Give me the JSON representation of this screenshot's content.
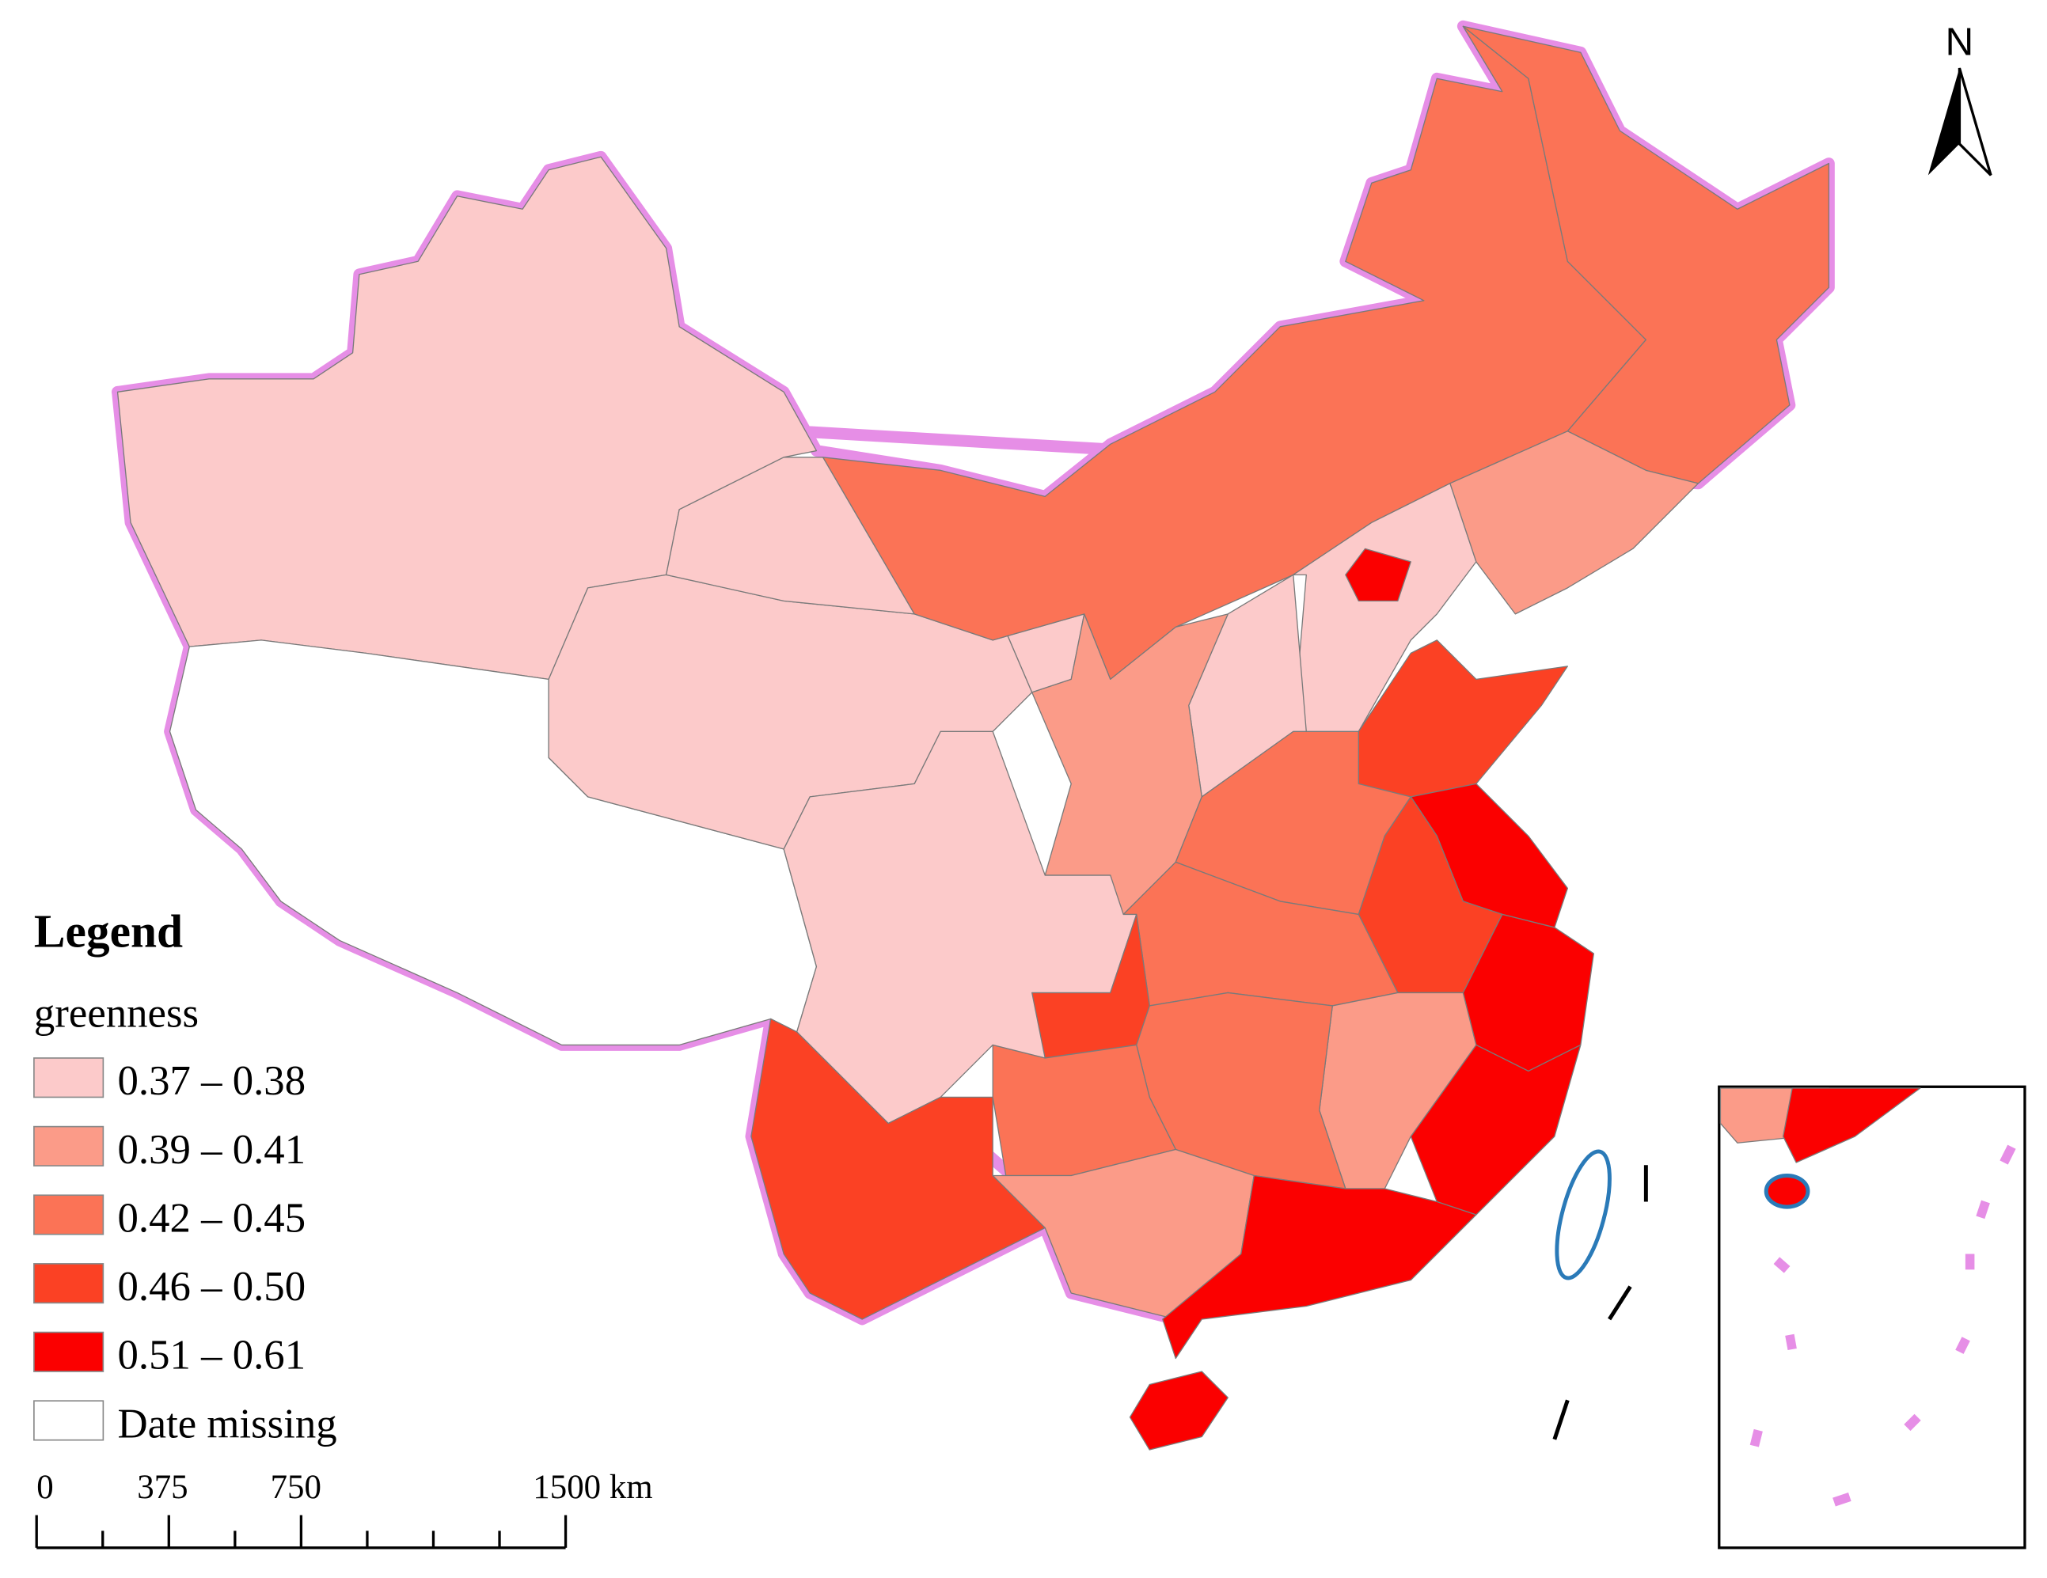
{
  "legend": {
    "title": "Legend",
    "field": "greenness",
    "items": [
      {
        "label": "0.37 – 0.38",
        "color": "#fccaca"
      },
      {
        "label": "0.39 – 0.41",
        "color": "#fb9b88"
      },
      {
        "label": "0.42 – 0.45",
        "color": "#fb7356"
      },
      {
        "label": "0.46 – 0.50",
        "color": "#fb4124"
      },
      {
        "label": "0.51 – 0.61",
        "color": "#fb0000"
      },
      {
        "label": "Date missing",
        "color": "#ffffff"
      }
    ]
  },
  "scale_bar": {
    "labels": [
      "0",
      "375",
      "750",
      "1500 km"
    ]
  },
  "north_arrow": {
    "label": "N"
  }
}
